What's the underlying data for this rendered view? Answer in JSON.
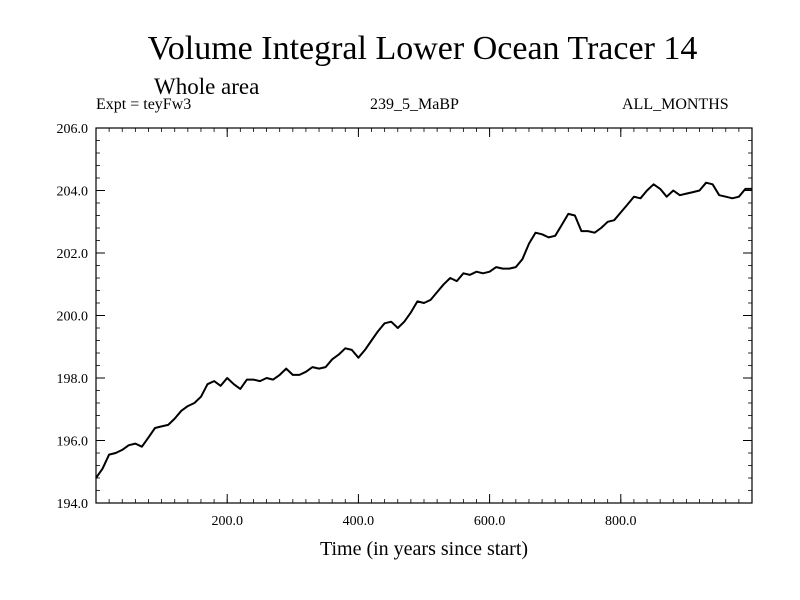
{
  "chart_data": {
    "type": "line",
    "title": "Volume Integral Lower Ocean Tracer 14",
    "subtitle": "Whole area",
    "experiment": "Expt = teyFw3",
    "run_label": "239_5_MaBP",
    "period": "ALL_MONTHS",
    "xlabel": "Time (in years since start)",
    "ylabel": "",
    "xlim": [
      0,
      1000
    ],
    "ylim": [
      194.0,
      206.0
    ],
    "x_ticks": [
      200,
      400,
      600,
      800
    ],
    "x_tick_labels": [
      "200.0",
      "400.0",
      "600.0",
      "800.0"
    ],
    "y_ticks": [
      194,
      196,
      198,
      200,
      202,
      204,
      206
    ],
    "y_tick_labels": [
      "194.0",
      "196.0",
      "198.0",
      "200.0",
      "202.0",
      "204.0",
      "206.0"
    ],
    "series": [
      {
        "name": "Lower Ocean Tracer 14",
        "x": [
          0,
          10,
          20,
          30,
          40,
          50,
          60,
          70,
          80,
          90,
          100,
          110,
          120,
          130,
          140,
          150,
          160,
          170,
          180,
          190,
          200,
          210,
          220,
          230,
          240,
          250,
          260,
          270,
          280,
          290,
          300,
          310,
          320,
          330,
          340,
          350,
          360,
          370,
          380,
          390,
          400,
          410,
          420,
          430,
          440,
          450,
          460,
          470,
          480,
          490,
          500,
          510,
          520,
          530,
          540,
          550,
          560,
          570,
          580,
          590,
          600,
          610,
          620,
          630,
          640,
          650,
          660,
          670,
          680,
          690,
          700,
          710,
          720,
          730,
          740,
          750,
          760,
          770,
          780,
          790,
          800,
          810,
          820,
          830,
          840,
          850,
          860,
          870,
          880,
          890,
          900,
          910,
          920,
          930,
          940,
          950,
          960,
          970,
          980,
          990,
          1000
        ],
        "values": [
          194.8,
          195.1,
          195.55,
          195.6,
          195.7,
          195.85,
          195.9,
          195.8,
          196.1,
          196.4,
          196.45,
          196.5,
          196.7,
          196.95,
          197.1,
          197.2,
          197.4,
          197.8,
          197.9,
          197.75,
          198.0,
          197.8,
          197.65,
          197.95,
          197.95,
          197.9,
          198.0,
          197.95,
          198.1,
          198.3,
          198.1,
          198.1,
          198.2,
          198.35,
          198.3,
          198.35,
          198.6,
          198.75,
          198.95,
          198.9,
          198.65,
          198.9,
          199.2,
          199.5,
          199.75,
          199.8,
          199.6,
          199.8,
          200.1,
          200.45,
          200.4,
          200.5,
          200.75,
          201.0,
          201.2,
          201.1,
          201.35,
          201.3,
          201.4,
          201.35,
          201.4,
          201.55,
          201.5,
          201.5,
          201.55,
          201.8,
          202.3,
          202.65,
          202.6,
          202.5,
          202.55,
          202.9,
          203.25,
          203.2,
          202.7,
          202.7,
          202.65,
          202.8,
          203.0,
          203.05,
          203.3,
          203.55,
          203.8,
          203.75,
          204.0,
          204.2,
          204.05,
          203.8,
          204.0,
          203.85,
          203.9,
          203.95,
          204.0,
          204.25,
          204.2,
          203.85,
          203.8,
          203.75,
          203.8,
          204.05,
          204.05
        ]
      }
    ]
  }
}
